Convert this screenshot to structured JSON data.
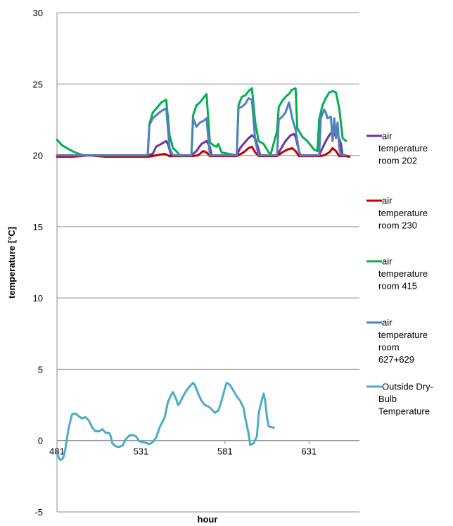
{
  "chart_data": {
    "type": "line",
    "title": "",
    "xlabel": "hour",
    "ylabel": "temperature [°C]",
    "xlim": [
      481,
      661
    ],
    "ylim": [
      -5,
      30
    ],
    "x_ticks": [
      "481",
      "531",
      "581",
      "631"
    ],
    "y_ticks": [
      "30",
      "25",
      "20",
      "15",
      "10",
      "5",
      "0",
      "-5"
    ],
    "grid": "horizontal",
    "legend_position": "right",
    "series": [
      {
        "name": "air temperature room 202",
        "color": "#7030a0",
        "points": [
          [
            481,
            20
          ],
          [
            535,
            20
          ],
          [
            538,
            20.1
          ],
          [
            540,
            20.6
          ],
          [
            543,
            20.8
          ],
          [
            546,
            21.0
          ],
          [
            547,
            20.8
          ],
          [
            549,
            20.0
          ],
          [
            561,
            20.0
          ],
          [
            564,
            20.3
          ],
          [
            567,
            20.8
          ],
          [
            570,
            21.0
          ],
          [
            572,
            20.6
          ],
          [
            573,
            20.0
          ],
          [
            588,
            20.0
          ],
          [
            590,
            20.5
          ],
          [
            592,
            20.8
          ],
          [
            595,
            21.2
          ],
          [
            597,
            21.4
          ],
          [
            599,
            21.2
          ],
          [
            601,
            20.4
          ],
          [
            602,
            20.0
          ],
          [
            612,
            20.0
          ],
          [
            614,
            20.4
          ],
          [
            617,
            21.0
          ],
          [
            620,
            21.4
          ],
          [
            622,
            21.5
          ],
          [
            623,
            21.3
          ],
          [
            625,
            20.3
          ],
          [
            626,
            20.0
          ],
          [
            637,
            20.0
          ],
          [
            639,
            20.5
          ],
          [
            641,
            21.0
          ],
          [
            643,
            21.4
          ],
          [
            645,
            21.7
          ],
          [
            646,
            21.4
          ],
          [
            647,
            21.8
          ],
          [
            648,
            21.5
          ],
          [
            650,
            20.8
          ],
          [
            651,
            20.0
          ],
          [
            653,
            20.0
          ]
        ]
      },
      {
        "name": "air temperature room 230",
        "color": "#c00000",
        "points": [
          [
            481,
            19.9
          ],
          [
            490,
            19.9
          ],
          [
            500,
            20.0
          ],
          [
            510,
            19.9
          ],
          [
            520,
            19.9
          ],
          [
            530,
            19.9
          ],
          [
            535,
            19.9
          ],
          [
            540,
            20.0
          ],
          [
            545,
            20.1
          ],
          [
            548,
            19.95
          ],
          [
            561,
            19.95
          ],
          [
            565,
            20.0
          ],
          [
            568,
            20.3
          ],
          [
            570,
            20.2
          ],
          [
            572,
            19.95
          ],
          [
            588,
            19.95
          ],
          [
            592,
            20.2
          ],
          [
            595,
            20.5
          ],
          [
            597,
            20.6
          ],
          [
            599,
            20.2
          ],
          [
            601,
            19.95
          ],
          [
            612,
            19.95
          ],
          [
            615,
            20.2
          ],
          [
            618,
            20.4
          ],
          [
            621,
            20.5
          ],
          [
            623,
            20.3
          ],
          [
            625,
            19.95
          ],
          [
            637,
            19.95
          ],
          [
            640,
            20.0
          ],
          [
            643,
            20.2
          ],
          [
            645,
            20.5
          ],
          [
            647,
            20.3
          ],
          [
            649,
            19.95
          ],
          [
            653,
            19.95
          ],
          [
            655,
            19.9
          ]
        ]
      },
      {
        "name": "air temperature room 415",
        "color": "#00b050",
        "points": [
          [
            481,
            21.1
          ],
          [
            484,
            20.7
          ],
          [
            487,
            20.5
          ],
          [
            490,
            20.3
          ],
          [
            494,
            20.1
          ],
          [
            497,
            20.0
          ],
          [
            535,
            20.0
          ],
          [
            536,
            22.2
          ],
          [
            538,
            23.0
          ],
          [
            541,
            23.4
          ],
          [
            543,
            23.7
          ],
          [
            546,
            23.9
          ],
          [
            548,
            21.4
          ],
          [
            549,
            21.0
          ],
          [
            550,
            20.5
          ],
          [
            552,
            20.3
          ],
          [
            554,
            20.0
          ],
          [
            561,
            20.0
          ],
          [
            562,
            22.8
          ],
          [
            564,
            23.5
          ],
          [
            566,
            23.7
          ],
          [
            568,
            24.0
          ],
          [
            570,
            24.3
          ],
          [
            572,
            20.9
          ],
          [
            574,
            20.7
          ],
          [
            576,
            20.6
          ],
          [
            577,
            20.8
          ],
          [
            579,
            20.2
          ],
          [
            588,
            20.0
          ],
          [
            589,
            23.5
          ],
          [
            591,
            24.1
          ],
          [
            593,
            24.2
          ],
          [
            595,
            24.5
          ],
          [
            597,
            24.7
          ],
          [
            599,
            22.3
          ],
          [
            601,
            21.0
          ],
          [
            604,
            20.8
          ],
          [
            606,
            20.4
          ],
          [
            608,
            20.0
          ],
          [
            612,
            21.7
          ],
          [
            613,
            23.4
          ],
          [
            615,
            23.8
          ],
          [
            617,
            24.1
          ],
          [
            619,
            24.3
          ],
          [
            621,
            24.6
          ],
          [
            623,
            24.7
          ],
          [
            624,
            21.9
          ],
          [
            627,
            21.3
          ],
          [
            630,
            21.0
          ],
          [
            632,
            20.7
          ],
          [
            634,
            20.4
          ],
          [
            636,
            20.3
          ],
          [
            637,
            22.5
          ],
          [
            639,
            23.5
          ],
          [
            641,
            24.0
          ],
          [
            643,
            24.4
          ],
          [
            645,
            24.5
          ],
          [
            647,
            24.4
          ],
          [
            649,
            23.3
          ],
          [
            651,
            21.2
          ],
          [
            653,
            21.0
          ]
        ]
      },
      {
        "name": "air temperature room 627+629",
        "color": "#4f81bd",
        "points": [
          [
            481,
            20.0
          ],
          [
            535,
            20.0
          ],
          [
            536,
            22.1
          ],
          [
            538,
            22.6
          ],
          [
            541,
            22.9
          ],
          [
            543,
            23.1
          ],
          [
            546,
            23.3
          ],
          [
            548,
            20.5
          ],
          [
            550,
            20.0
          ],
          [
            561,
            20.0
          ],
          [
            562,
            22.6
          ],
          [
            564,
            22.0
          ],
          [
            566,
            22.3
          ],
          [
            568,
            22.4
          ],
          [
            570,
            22.6
          ],
          [
            572,
            20.0
          ],
          [
            588,
            20.0
          ],
          [
            589,
            23.3
          ],
          [
            591,
            23.4
          ],
          [
            593,
            23.6
          ],
          [
            595,
            24.0
          ],
          [
            597,
            23.9
          ],
          [
            599,
            21.0
          ],
          [
            601,
            20.0
          ],
          [
            612,
            20.0
          ],
          [
            613,
            22.5
          ],
          [
            615,
            22.7
          ],
          [
            617,
            23.0
          ],
          [
            619,
            23.7
          ],
          [
            620,
            23.2
          ],
          [
            621,
            22.6
          ],
          [
            623,
            21.8
          ],
          [
            625,
            20.3
          ],
          [
            626,
            20.0
          ],
          [
            637,
            20.0
          ],
          [
            638,
            22.6
          ],
          [
            640,
            23.2
          ],
          [
            641,
            23.0
          ],
          [
            642,
            22.6
          ],
          [
            644,
            22.7
          ],
          [
            645,
            21.0
          ],
          [
            646,
            22.6
          ],
          [
            647,
            21.2
          ],
          [
            648,
            22.3
          ],
          [
            649,
            20.5
          ],
          [
            650,
            20.0
          ],
          [
            653,
            20.0
          ]
        ]
      },
      {
        "name": "Outside Dry-Bulb Temperature",
        "color": "#4bacc6",
        "points": [
          [
            481,
            -0.8
          ],
          [
            482,
            -1.2
          ],
          [
            483,
            -1.35
          ],
          [
            484,
            -1.3
          ],
          [
            485,
            -1.1
          ],
          [
            486,
            -0.6
          ],
          [
            487,
            0.2
          ],
          [
            488,
            0.9
          ],
          [
            489,
            1.4
          ],
          [
            490,
            1.85
          ],
          [
            492,
            1.9
          ],
          [
            494,
            1.7
          ],
          [
            496,
            1.55
          ],
          [
            498,
            1.65
          ],
          [
            500,
            1.4
          ],
          [
            502,
            0.9
          ],
          [
            504,
            0.65
          ],
          [
            506,
            0.65
          ],
          [
            508,
            0.8
          ],
          [
            510,
            0.55
          ],
          [
            512,
            0.55
          ],
          [
            513,
            0.3
          ],
          [
            514,
            -0.2
          ],
          [
            516,
            -0.4
          ],
          [
            518,
            -0.45
          ],
          [
            520,
            -0.35
          ],
          [
            522,
            0.1
          ],
          [
            524,
            0.35
          ],
          [
            526,
            0.4
          ],
          [
            528,
            0.3
          ],
          [
            530,
            -0.05
          ],
          [
            532,
            -0.1
          ],
          [
            534,
            -0.15
          ],
          [
            536,
            -0.25
          ],
          [
            538,
            -0.1
          ],
          [
            540,
            0.2
          ],
          [
            542,
            0.9
          ],
          [
            545,
            1.6
          ],
          [
            547,
            2.7
          ],
          [
            549,
            3.2
          ],
          [
            550,
            3.4
          ],
          [
            552,
            2.9
          ],
          [
            553,
            2.5
          ],
          [
            554,
            2.6
          ],
          [
            556,
            3.1
          ],
          [
            558,
            3.5
          ],
          [
            560,
            3.8
          ],
          [
            562,
            4.05
          ],
          [
            563,
            3.9
          ],
          [
            565,
            3.3
          ],
          [
            567,
            2.8
          ],
          [
            569,
            2.5
          ],
          [
            571,
            2.4
          ],
          [
            573,
            2.2
          ],
          [
            575,
            1.95
          ],
          [
            577,
            2.1
          ],
          [
            579,
            2.8
          ],
          [
            581,
            3.7
          ],
          [
            582,
            4.05
          ],
          [
            584,
            3.9
          ],
          [
            586,
            3.5
          ],
          [
            588,
            3.1
          ],
          [
            590,
            2.8
          ],
          [
            592,
            2.3
          ],
          [
            593,
            1.6
          ],
          [
            595,
            0.5
          ],
          [
            596,
            -0.3
          ],
          [
            598,
            -0.2
          ],
          [
            600,
            0.3
          ],
          [
            601,
            1.9
          ],
          [
            603,
            2.9
          ],
          [
            604,
            3.3
          ],
          [
            605,
            2.7
          ],
          [
            606,
            1.6
          ],
          [
            607,
            1.0
          ],
          [
            610,
            0.9
          ]
        ]
      }
    ]
  }
}
